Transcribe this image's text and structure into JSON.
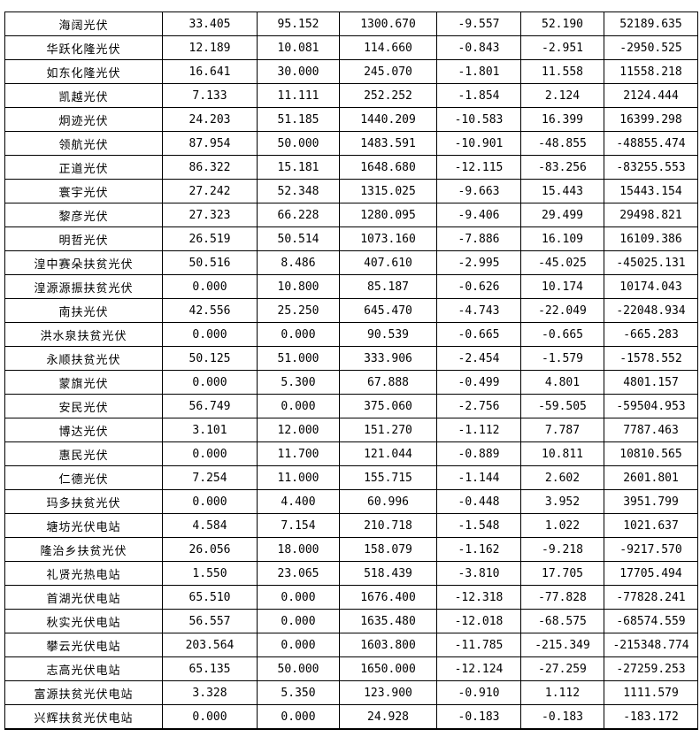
{
  "colors": {
    "background": "#ffffff",
    "border": "#000000",
    "text": "#000000"
  },
  "table": {
    "rows": [
      {
        "name": "海阔光伏",
        "values": [
          "33.405",
          "95.152",
          "1300.670",
          "-9.557",
          "52.190",
          "52189.635"
        ]
      },
      {
        "name": "华跃化隆光伏",
        "values": [
          "12.189",
          "10.081",
          "114.660",
          "-0.843",
          "-2.951",
          "-2950.525"
        ]
      },
      {
        "name": "如东化隆光伏",
        "values": [
          "16.641",
          "30.000",
          "245.070",
          "-1.801",
          "11.558",
          "11558.218"
        ]
      },
      {
        "name": "凯越光伏",
        "values": [
          "7.133",
          "11.111",
          "252.252",
          "-1.854",
          "2.124",
          "2124.444"
        ]
      },
      {
        "name": "炯迹光伏",
        "values": [
          "24.203",
          "51.185",
          "1440.209",
          "-10.583",
          "16.399",
          "16399.298"
        ]
      },
      {
        "name": "领航光伏",
        "values": [
          "87.954",
          "50.000",
          "1483.591",
          "-10.901",
          "-48.855",
          "-48855.474"
        ]
      },
      {
        "name": "正道光伏",
        "values": [
          "86.322",
          "15.181",
          "1648.680",
          "-12.115",
          "-83.256",
          "-83255.553"
        ]
      },
      {
        "name": "寰宇光伏",
        "values": [
          "27.242",
          "52.348",
          "1315.025",
          "-9.663",
          "15.443",
          "15443.154"
        ]
      },
      {
        "name": "黎彦光伏",
        "values": [
          "27.323",
          "66.228",
          "1280.095",
          "-9.406",
          "29.499",
          "29498.821"
        ]
      },
      {
        "name": "明哲光伏",
        "values": [
          "26.519",
          "50.514",
          "1073.160",
          "-7.886",
          "16.109",
          "16109.386"
        ]
      },
      {
        "name": "湟中赛朵扶贫光伏",
        "values": [
          "50.516",
          "8.486",
          "407.610",
          "-2.995",
          "-45.025",
          "-45025.131"
        ]
      },
      {
        "name": "湟源源振扶贫光伏",
        "values": [
          "0.000",
          "10.800",
          "85.187",
          "-0.626",
          "10.174",
          "10174.043"
        ]
      },
      {
        "name": "南扶光伏",
        "values": [
          "42.556",
          "25.250",
          "645.470",
          "-4.743",
          "-22.049",
          "-22048.934"
        ]
      },
      {
        "name": "洪水泉扶贫光伏",
        "values": [
          "0.000",
          "0.000",
          "90.539",
          "-0.665",
          "-0.665",
          "-665.283"
        ]
      },
      {
        "name": "永顺扶贫光伏",
        "values": [
          "50.125",
          "51.000",
          "333.906",
          "-2.454",
          "-1.579",
          "-1578.552"
        ]
      },
      {
        "name": "蒙旗光伏",
        "values": [
          "0.000",
          "5.300",
          "67.888",
          "-0.499",
          "4.801",
          "4801.157"
        ]
      },
      {
        "name": "安民光伏",
        "values": [
          "56.749",
          "0.000",
          "375.060",
          "-2.756",
          "-59.505",
          "-59504.953"
        ]
      },
      {
        "name": "博达光伏",
        "values": [
          "3.101",
          "12.000",
          "151.270",
          "-1.112",
          "7.787",
          "7787.463"
        ]
      },
      {
        "name": "惠民光伏",
        "values": [
          "0.000",
          "11.700",
          "121.044",
          "-0.889",
          "10.811",
          "10810.565"
        ]
      },
      {
        "name": "仁德光伏",
        "values": [
          "7.254",
          "11.000",
          "155.715",
          "-1.144",
          "2.602",
          "2601.801"
        ]
      },
      {
        "name": "玛多扶贫光伏",
        "values": [
          "0.000",
          "4.400",
          "60.996",
          "-0.448",
          "3.952",
          "3951.799"
        ]
      },
      {
        "name": "塘坊光伏电站",
        "values": [
          "4.584",
          "7.154",
          "210.718",
          "-1.548",
          "1.022",
          "1021.637"
        ]
      },
      {
        "name": "隆治乡扶贫光伏",
        "values": [
          "26.056",
          "18.000",
          "158.079",
          "-1.162",
          "-9.218",
          "-9217.570"
        ]
      },
      {
        "name": "礼贤光热电站",
        "values": [
          "1.550",
          "23.065",
          "518.439",
          "-3.810",
          "17.705",
          "17705.494"
        ]
      },
      {
        "name": "首湖光伏电站",
        "values": [
          "65.510",
          "0.000",
          "1676.400",
          "-12.318",
          "-77.828",
          "-77828.241"
        ]
      },
      {
        "name": "秋实光伏电站",
        "values": [
          "56.557",
          "0.000",
          "1635.480",
          "-12.018",
          "-68.575",
          "-68574.559"
        ]
      },
      {
        "name": "攀云光伏电站",
        "values": [
          "203.564",
          "0.000",
          "1603.800",
          "-11.785",
          "-215.349",
          "-215348.774"
        ]
      },
      {
        "name": "志高光伏电站",
        "values": [
          "65.135",
          "50.000",
          "1650.000",
          "-12.124",
          "-27.259",
          "-27259.253"
        ]
      },
      {
        "name": "富源扶贫光伏电站",
        "values": [
          "3.328",
          "5.350",
          "123.900",
          "-0.910",
          "1.112",
          "1111.579"
        ]
      },
      {
        "name": "兴辉扶贫光伏电站",
        "values": [
          "0.000",
          "0.000",
          "24.928",
          "-0.183",
          "-0.183",
          "-183.172"
        ]
      }
    ]
  }
}
